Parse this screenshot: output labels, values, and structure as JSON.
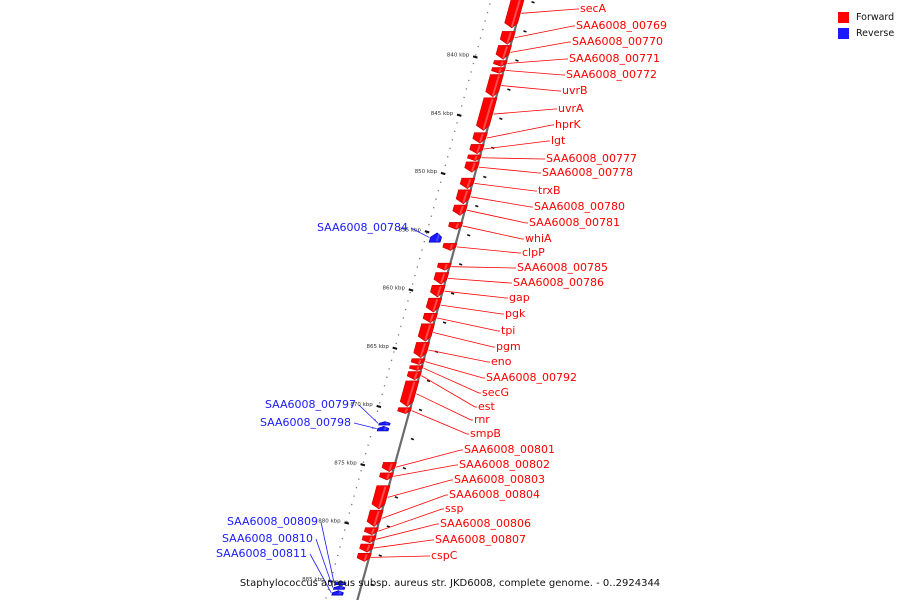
{
  "legend": {
    "forward_label": "Forward",
    "reverse_label": "Reverse",
    "forward_color": "#ff0000",
    "reverse_color": "#1a1aff"
  },
  "caption": "Staphylococcus aureus subsp. aureus str. JKD6008, complete genome. - 0..2924344",
  "axis": {
    "unit": "kbp",
    "ticks": [
      {
        "value": 840,
        "label": "840 kbp"
      },
      {
        "value": 845,
        "label": "845 kbp"
      },
      {
        "value": 850,
        "label": "850 kbp"
      },
      {
        "value": 855,
        "label": "855 kbp"
      },
      {
        "value": 860,
        "label": "860 kbp"
      },
      {
        "value": 865,
        "label": "865 kbp"
      },
      {
        "value": 870,
        "label": "870 kbp"
      },
      {
        "value": 875,
        "label": "875 kbp"
      },
      {
        "value": 880,
        "label": "880 kbp"
      },
      {
        "value": 885,
        "label": "885 kbp"
      }
    ]
  },
  "genes": [
    {
      "name": "secA",
      "strand": "forward",
      "start": 835.0,
      "end": 837.5
    },
    {
      "name": "SAA6008_00769",
      "strand": "forward",
      "start": 837.8,
      "end": 838.9
    },
    {
      "name": "SAA6008_00770",
      "strand": "forward",
      "start": 839.0,
      "end": 840.2
    },
    {
      "name": "SAA6008_00771",
      "strand": "forward",
      "start": 840.3,
      "end": 840.8
    },
    {
      "name": "SAA6008_00772",
      "strand": "forward",
      "start": 840.9,
      "end": 841.4
    },
    {
      "name": "uvrB",
      "strand": "forward",
      "start": 841.5,
      "end": 843.4
    },
    {
      "name": "uvrA",
      "strand": "forward",
      "start": 843.5,
      "end": 846.3
    },
    {
      "name": "hprK",
      "strand": "forward",
      "start": 846.5,
      "end": 847.4
    },
    {
      "name": "lgt",
      "strand": "forward",
      "start": 847.5,
      "end": 848.3
    },
    {
      "name": "SAA6008_00777",
      "strand": "forward",
      "start": 848.4,
      "end": 848.9
    },
    {
      "name": "SAA6008_00778",
      "strand": "forward",
      "start": 849.0,
      "end": 849.9
    },
    {
      "name": "trxB",
      "strand": "forward",
      "start": 850.4,
      "end": 851.3
    },
    {
      "name": "SAA6008_00780",
      "strand": "forward",
      "start": 851.4,
      "end": 852.6
    },
    {
      "name": "SAA6008_00781",
      "strand": "forward",
      "start": 852.7,
      "end": 853.6
    },
    {
      "name": "whiA",
      "strand": "forward",
      "start": 854.2,
      "end": 854.8
    },
    {
      "name": "SAA6008_00784",
      "strand": "reverse",
      "start": 855.1,
      "end": 855.9
    },
    {
      "name": "clpP",
      "strand": "forward",
      "start": 856.0,
      "end": 856.6
    },
    {
      "name": "SAA6008_00785",
      "strand": "forward",
      "start": 857.7,
      "end": 858.3
    },
    {
      "name": "SAA6008_00786",
      "strand": "forward",
      "start": 858.5,
      "end": 859.5
    },
    {
      "name": "gap",
      "strand": "forward",
      "start": 859.6,
      "end": 860.6
    },
    {
      "name": "pgk",
      "strand": "forward",
      "start": 860.7,
      "end": 861.9
    },
    {
      "name": "tpi",
      "strand": "forward",
      "start": 862.0,
      "end": 862.8
    },
    {
      "name": "pgm",
      "strand": "forward",
      "start": 862.9,
      "end": 864.4
    },
    {
      "name": "eno",
      "strand": "forward",
      "start": 864.5,
      "end": 865.8
    },
    {
      "name": "SAA6008_00792",
      "strand": "forward",
      "start": 865.9,
      "end": 866.4
    },
    {
      "name": "secG",
      "strand": "forward",
      "start": 866.5,
      "end": 866.9
    },
    {
      "name": "est",
      "strand": "forward",
      "start": 867.0,
      "end": 867.7
    },
    {
      "name": "rnr",
      "strand": "forward",
      "start": 867.8,
      "end": 870.0
    },
    {
      "name": "SAA6008_00797",
      "strand": "reverse",
      "start": 871.3,
      "end": 871.6
    },
    {
      "name": "SAA6008_00798",
      "strand": "reverse",
      "start": 871.7,
      "end": 872.1
    },
    {
      "name": "smpB",
      "strand": "forward",
      "start": 870.1,
      "end": 870.6
    },
    {
      "name": "SAA6008_00801",
      "strand": "forward",
      "start": 874.8,
      "end": 875.6
    },
    {
      "name": "SAA6008_00802",
      "strand": "forward",
      "start": 875.7,
      "end": 876.3
    },
    {
      "name": "SAA6008_00803",
      "strand": "forward",
      "start": 876.8,
      "end": 878.8
    },
    {
      "name": "SAA6008_00804",
      "strand": "forward",
      "start": 878.9,
      "end": 880.3
    },
    {
      "name": "ssp",
      "strand": "forward",
      "start": 880.4,
      "end": 881.0
    },
    {
      "name": "SAA6008_00806",
      "strand": "forward",
      "start": 881.1,
      "end": 881.7
    },
    {
      "name": "SAA6008_00807",
      "strand": "forward",
      "start": 881.8,
      "end": 882.5
    },
    {
      "name": "cspC",
      "strand": "forward",
      "start": 882.6,
      "end": 883.3
    },
    {
      "name": "SAA6008_00809",
      "strand": "reverse",
      "start": 885.0,
      "end": 885.3
    },
    {
      "name": "SAA6008_00810",
      "strand": "reverse",
      "start": 885.4,
      "end": 885.7
    },
    {
      "name": "SAA6008_00811",
      "strand": "reverse",
      "start": 885.8,
      "end": 886.2
    }
  ]
}
